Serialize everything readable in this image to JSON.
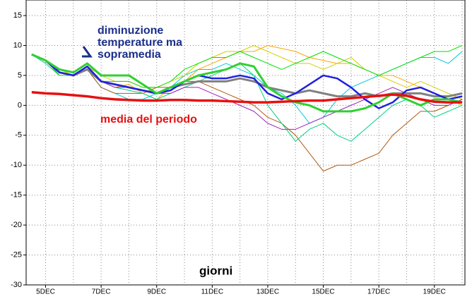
{
  "chart_data": {
    "type": "line",
    "x": [
      4.5,
      5,
      5.5,
      6,
      6.5,
      7,
      7.5,
      8,
      8.5,
      9,
      9.5,
      10,
      10.5,
      11,
      11.5,
      12,
      12.5,
      13,
      13.5,
      14,
      14.5,
      15,
      15.5,
      16,
      16.5,
      17,
      17.5,
      18,
      18.5,
      19,
      19.5,
      20
    ],
    "xlim": [
      4.3,
      20.1
    ],
    "xticks": [
      {
        "value": 5,
        "label": "5DEC"
      },
      {
        "value": 7,
        "label": "7DEC"
      },
      {
        "value": 9,
        "label": "9DEC"
      },
      {
        "value": 11,
        "label": "11DEC"
      },
      {
        "value": 13,
        "label": "13DEC"
      },
      {
        "value": 15,
        "label": "15DEC"
      },
      {
        "value": 17,
        "label": "17DEC"
      },
      {
        "value": 19,
        "label": "19DEC"
      }
    ],
    "x_minor_ticks": [
      6,
      8,
      10,
      12,
      14,
      16,
      18,
      20
    ],
    "ylim": [
      -30,
      17.6
    ],
    "yticks": [
      -30,
      -25,
      -20,
      -15,
      -10,
      -5,
      0,
      5,
      10,
      15
    ],
    "grid": true,
    "series": [
      {
        "color": "#ffa500",
        "linewidth": 1,
        "values": [
          8.5,
          7.5,
          5.5,
          5,
          6,
          4,
          3,
          3.5,
          2,
          1,
          3,
          4,
          6,
          7,
          8,
          9,
          9,
          10,
          9.5,
          9,
          8,
          7.5,
          7,
          7,
          6,
          5,
          5,
          4,
          3,
          2,
          1,
          0
        ]
      },
      {
        "color": "#00c8e0",
        "linewidth": 1,
        "values": [
          8.5,
          7.5,
          5,
          5,
          6,
          3,
          2,
          1,
          1,
          2,
          3,
          5,
          6,
          6,
          7,
          6,
          5,
          3,
          2,
          0,
          -3,
          -2,
          1,
          3,
          4,
          5,
          6,
          7,
          8,
          8,
          7,
          9
        ]
      },
      {
        "color": "#b05a10",
        "linewidth": 1,
        "values": [
          8.5,
          7.5,
          5,
          5,
          6,
          3,
          2,
          2,
          2,
          3,
          3,
          4,
          4,
          3,
          2,
          1,
          0,
          -2,
          -3,
          -5,
          -8,
          -11,
          -10,
          -10,
          -9,
          -8,
          -5,
          -3,
          -1,
          -1,
          0,
          1
        ]
      },
      {
        "color": "#00d080",
        "linewidth": 1,
        "values": [
          8.5,
          7,
          5,
          5,
          6,
          4,
          3,
          2.5,
          2,
          1,
          2,
          3,
          4,
          5,
          6,
          7,
          5,
          0,
          -3,
          -6,
          -4,
          -3,
          -5,
          -6,
          -4,
          -2,
          0,
          1,
          0,
          -2,
          -1,
          0
        ]
      },
      {
        "color": "#d0d000",
        "linewidth": 1,
        "values": [
          8.5,
          7.5,
          6,
          5,
          6.5,
          5,
          4,
          4,
          3,
          3,
          4,
          5,
          7,
          8,
          9,
          9,
          10,
          9,
          8,
          7,
          7,
          6,
          7,
          8,
          6,
          5,
          4,
          3,
          4,
          3,
          2,
          1
        ]
      },
      {
        "color": "#a020c0",
        "linewidth": 1,
        "values": [
          8.5,
          7.5,
          5.5,
          5,
          6,
          4,
          3,
          3,
          2.5,
          2,
          2,
          3,
          3,
          2,
          1,
          0,
          -1,
          -3,
          -4,
          -4,
          -3,
          -2,
          -1,
          0,
          1,
          2,
          3,
          2,
          1,
          0,
          0,
          1
        ]
      },
      {
        "color": "#00e000",
        "linewidth": 1,
        "values": [
          8.5,
          7.5,
          5,
          5,
          6,
          4,
          4,
          4,
          3,
          3,
          4,
          6,
          7,
          8,
          8,
          9,
          8,
          7,
          6,
          7,
          8,
          9,
          8,
          7,
          6,
          5,
          6,
          7,
          8,
          9,
          9,
          10
        ]
      },
      {
        "color": "#808080",
        "linewidth": 3,
        "values": [
          8.5,
          7.5,
          5.5,
          5,
          6,
          4,
          3.5,
          3,
          2.5,
          2,
          3,
          3.5,
          4,
          4,
          4,
          4.5,
          4,
          3,
          2.5,
          2,
          2.5,
          2,
          1.5,
          1.5,
          2,
          1.5,
          2,
          2,
          2,
          1.5,
          1.5,
          2
        ]
      },
      {
        "color": "#2020e0",
        "linewidth": 2.5,
        "values": [
          8.5,
          7.5,
          5.5,
          5,
          6.5,
          4,
          3.5,
          3,
          2.5,
          2,
          2.5,
          4,
          5,
          4.5,
          4.5,
          5,
          4.5,
          2,
          1,
          2,
          3.5,
          5,
          4.5,
          3,
          1,
          -0.5,
          0.5,
          2.5,
          3,
          2,
          1,
          1.5
        ]
      },
      {
        "color": "#30d030",
        "linewidth": 3,
        "values": [
          8.5,
          7.5,
          6,
          5.5,
          7,
          5,
          5,
          5,
          3.5,
          2,
          3,
          4,
          5,
          5.5,
          6,
          7,
          6.5,
          3,
          1.5,
          0.5,
          0,
          -1,
          -1,
          -1,
          -0.5,
          0.5,
          2,
          1,
          0,
          1,
          1,
          0.5
        ]
      },
      {
        "color": "#e81010",
        "linewidth": 3.5,
        "values": [
          2.2,
          2,
          1.9,
          1.7,
          1.5,
          1.2,
          1,
          0.9,
          0.8,
          0.8,
          0.9,
          0.9,
          0.8,
          0.8,
          0.7,
          0.6,
          0.5,
          0.5,
          0.6,
          0.7,
          0.8,
          0.8,
          1,
          1.2,
          1.4,
          1.6,
          1.8,
          1.6,
          1,
          0.6,
          0.5,
          0.5
        ]
      }
    ],
    "annotations": [
      {
        "text": "diminuzione",
        "color": "#1a2f8a"
      },
      {
        "text": "temperature ma",
        "color": "#1a2f8a"
      },
      {
        "text": "sopramedia",
        "color": "#1a2f8a"
      },
      {
        "text": "media del periodo",
        "color": "#e81010"
      },
      {
        "text": "giorni",
        "color": "#000000"
      }
    ]
  }
}
